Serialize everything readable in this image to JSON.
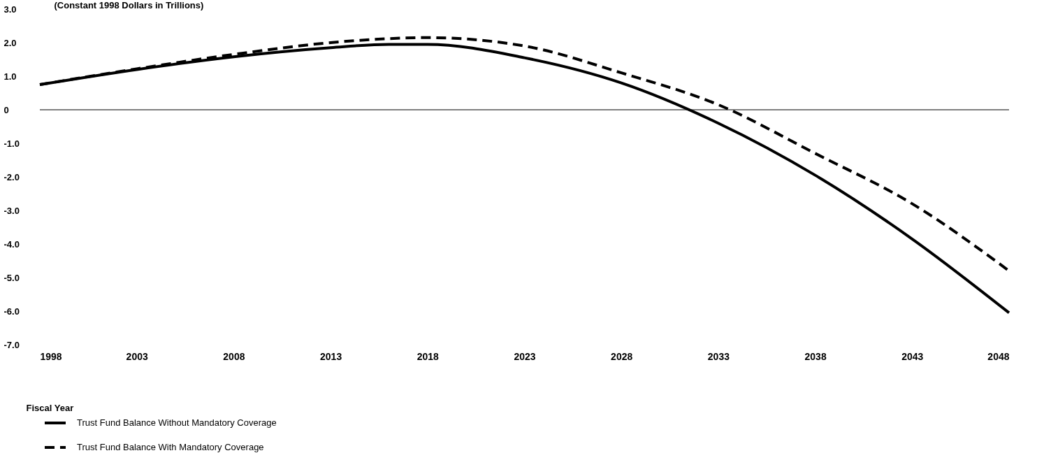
{
  "chart_data": {
    "type": "line",
    "ylabel": "(Constant 1998 Dollars in Trillions)",
    "xlabel": "Fiscal Year",
    "x": [
      1998,
      2003,
      2008,
      2013,
      2016,
      2018,
      2023,
      2028,
      2033,
      2038,
      2043,
      2048
    ],
    "series": [
      {
        "name": "Trust Fund Balance Without Mandatory Coverage",
        "color": "#000000",
        "line_style": "solid",
        "values": [
          0.75,
          1.2,
          1.58,
          1.85,
          1.95,
          1.95,
          1.55,
          0.8,
          -0.4,
          -1.95,
          -3.85,
          -6.05
        ]
      },
      {
        "name": "Trust Fund Balance With Mandatory Coverage",
        "color": "#000000",
        "line_style": "dashed",
        "values": [
          0.75,
          1.22,
          1.65,
          2.0,
          2.12,
          2.15,
          1.9,
          1.1,
          0.15,
          -1.3,
          -2.8,
          -4.8
        ]
      }
    ],
    "xlim": [
      1998,
      2048
    ],
    "xticks": [
      1998,
      2003,
      2008,
      2013,
      2018,
      2023,
      2028,
      2033,
      2038,
      2043,
      2048
    ],
    "ylim": [
      -7,
      3
    ],
    "yticks": [
      {
        "value": 3,
        "label": "3.0"
      },
      {
        "value": 2,
        "label": "2.0"
      },
      {
        "value": 1,
        "label": "1.0"
      },
      0,
      {
        "value": -1,
        "label": "-1.0"
      },
      {
        "value": -2,
        "label": "-2.0"
      },
      {
        "value": -3,
        "label": "-3.0"
      },
      {
        "value": -4,
        "label": "-4.0"
      },
      {
        "value": -5,
        "label": "-5.0"
      },
      {
        "value": -6,
        "label": "-6.0"
      },
      {
        "value": -7,
        "label": "-7.0"
      }
    ],
    "ref_lines": [
      {
        "axis": "y",
        "value": 0,
        "label": null
      }
    ],
    "grid": false,
    "legend": "bottom left"
  }
}
